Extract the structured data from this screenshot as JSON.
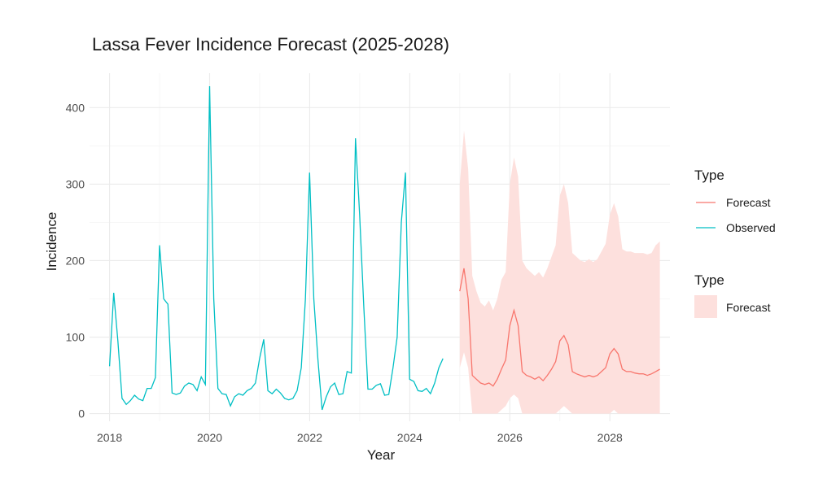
{
  "chart_data": {
    "type": "line",
    "title": "Lassa Fever Incidence Forecast (2025-2028)",
    "xlabel": "Year",
    "ylabel": "Incidence",
    "xlim": [
      2017.6,
      2029.2
    ],
    "ylim": [
      -10,
      445
    ],
    "x_ticks": [
      2018,
      2020,
      2022,
      2024,
      2026,
      2028
    ],
    "y_ticks": [
      0,
      100,
      200,
      300,
      400
    ],
    "grid": true,
    "legend_placement": "right",
    "legend_lines_title": "Type",
    "legend_fill_title": "Type",
    "colors": {
      "observed": "#00BFC4",
      "forecast": "#F8766D",
      "band": "#FDE0DD"
    },
    "observed": {
      "name": "Observed",
      "start": 2018.0,
      "step": 0.0833,
      "values": [
        62,
        158,
        95,
        20,
        12,
        17,
        24,
        19,
        17,
        33,
        33,
        47,
        220,
        150,
        143,
        27,
        25,
        27,
        36,
        40,
        38,
        30,
        48,
        38,
        428,
        150,
        33,
        26,
        25,
        10,
        22,
        26,
        24,
        30,
        33,
        40,
        72,
        97,
        30,
        26,
        32,
        27,
        20,
        18,
        20,
        30,
        60,
        150,
        315,
        150,
        70,
        5,
        22,
        35,
        40,
        25,
        26,
        55,
        53,
        360,
        260,
        140,
        32,
        32,
        37,
        39,
        24,
        25,
        60,
        100,
        250,
        315,
        45,
        42,
        30,
        29,
        33,
        26,
        40,
        60,
        72
      ]
    },
    "forecast": {
      "name": "Forecast",
      "start": 2025.0,
      "step": 0.0833,
      "values": [
        160,
        190,
        150,
        50,
        45,
        40,
        38,
        40,
        36,
        45,
        58,
        70,
        115,
        135,
        115,
        55,
        50,
        48,
        45,
        48,
        43,
        50,
        58,
        68,
        95,
        102,
        90,
        55,
        52,
        50,
        48,
        50,
        48,
        50,
        55,
        60,
        78,
        85,
        78,
        58,
        55,
        55,
        53,
        52,
        52,
        50,
        52,
        55,
        58
      ],
      "upper": [
        300,
        370,
        320,
        180,
        160,
        145,
        140,
        148,
        135,
        150,
        175,
        185,
        300,
        335,
        310,
        200,
        190,
        185,
        180,
        185,
        178,
        190,
        205,
        220,
        285,
        300,
        275,
        210,
        205,
        200,
        198,
        202,
        198,
        202,
        212,
        222,
        260,
        275,
        258,
        215,
        212,
        212,
        210,
        210,
        210,
        208,
        210,
        220,
        225
      ],
      "lower": [
        60,
        80,
        60,
        0,
        0,
        0,
        0,
        0,
        0,
        0,
        5,
        10,
        20,
        25,
        20,
        0,
        0,
        0,
        0,
        0,
        0,
        0,
        0,
        0,
        5,
        10,
        5,
        0,
        0,
        0,
        0,
        0,
        0,
        0,
        0,
        0,
        0,
        5,
        0,
        0,
        0,
        0,
        0,
        0,
        0,
        0,
        0,
        0,
        0
      ]
    },
    "legend": {
      "lines": [
        "Forecast",
        "Observed"
      ],
      "fill": [
        "Forecast"
      ]
    }
  }
}
